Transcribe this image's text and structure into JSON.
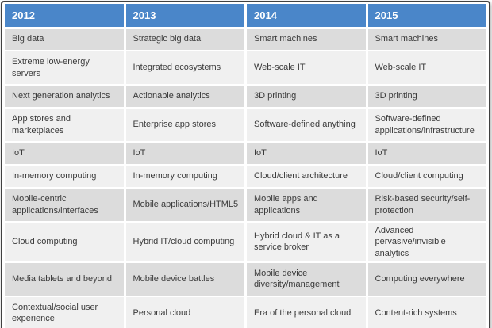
{
  "table": {
    "columns": [
      "2012",
      "2013",
      "2014",
      "2015"
    ],
    "rows": [
      [
        "Big data",
        "Strategic big data",
        "Smart machines",
        "Smart machines"
      ],
      [
        "Extreme low-energy servers",
        "Integrated ecosystems",
        "Web-scale IT",
        "Web-scale IT"
      ],
      [
        "Next generation analytics",
        "Actionable analytics",
        "3D printing",
        "3D printing"
      ],
      [
        "App stores and marketplaces",
        "Enterprise app stores",
        "Software-defined anything",
        "Software-defined applications/infrastructure"
      ],
      [
        "IoT",
        "IoT",
        "IoT",
        "IoT"
      ],
      [
        "In-memory computing",
        "In-memory computing",
        "Cloud/client architecture",
        "Cloud/client computing"
      ],
      [
        "Mobile-centric applications/interfaces",
        "Mobile applications/HTML5",
        "Mobile apps and applications",
        "Risk-based security/self-protection"
      ],
      [
        "Cloud computing",
        "Hybrid IT/cloud computing",
        "Hybrid cloud & IT as a service broker",
        "Advanced pervasive/invisible analytics"
      ],
      [
        "Media tablets and beyond",
        "Mobile device battles",
        "Mobile device diversity/management",
        "Computing everywhere"
      ],
      [
        "Contextual/social user experience",
        "Personal cloud",
        "Era of the personal cloud",
        "Content-rich systems"
      ]
    ]
  },
  "colors": {
    "header_blue": "#4a86c9",
    "header_text": "#ffffff",
    "row_gray": "#dcdcdc",
    "row_light": "#f0f0f0",
    "cell_text": "#3a3a3a",
    "outer_border": "#414141",
    "gutter": "#ffffff"
  }
}
